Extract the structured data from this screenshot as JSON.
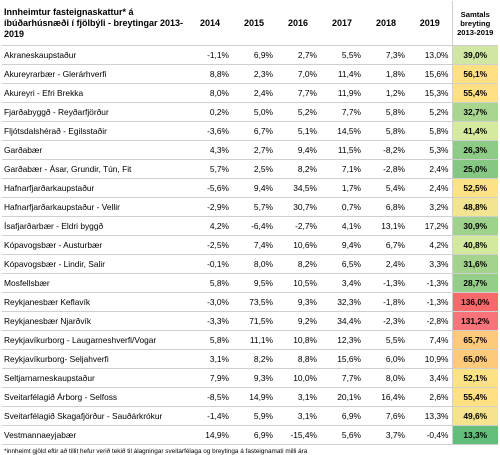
{
  "header": {
    "title": "Innheimtur fasteignaskattur* á íbúðarhúsnæði í fjölbýli - breytingar 2013- 2019",
    "years": [
      "2014",
      "2015",
      "2016",
      "2017",
      "2018",
      "2019"
    ],
    "sum_label": "Samtals breyting 2013-2019"
  },
  "rows": [
    {
      "name": "Akraneskaupstaður",
      "values": [
        "-1,1%",
        "6,9%",
        "2,7%",
        "5,5%",
        "7,3%",
        "13,0%"
      ],
      "total": "39,0%",
      "color": "#cfe7a2"
    },
    {
      "name": "Akureyrarbær - Glerárhverfi",
      "values": [
        "8,8%",
        "2,3%",
        "7,0%",
        "11,4%",
        "1,8%",
        "15,6%"
      ],
      "total": "56,1%",
      "color": "#ffe083"
    },
    {
      "name": "Akureyri - Efri Brekka",
      "values": [
        "8,0%",
        "2,4%",
        "7,7%",
        "11,9%",
        "1,2%",
        "15,3%"
      ],
      "total": "55,4%",
      "color": "#ffe083"
    },
    {
      "name": "Fjarðabyggð - Reyðarfjörður",
      "values": [
        "0,2%",
        "5,0%",
        "5,2%",
        "7,7%",
        "5,8%",
        "5,2%"
      ],
      "total": "32,7%",
      "color": "#a9d68f"
    },
    {
      "name": "Fljótsdalshérað - Egilsstaðir",
      "values": [
        "-3,6%",
        "6,7%",
        "5,1%",
        "14,5%",
        "5,8%",
        "5,8%"
      ],
      "total": "41,4%",
      "color": "#d6ea9f"
    },
    {
      "name": "Garðabær",
      "values": [
        "4,3%",
        "2,7%",
        "9,4%",
        "11,5%",
        "-8,2%",
        "5,3%"
      ],
      "total": "26,3%",
      "color": "#8ecb86"
    },
    {
      "name": "Garðabær - Ásar, Grundir, Tún, Fit",
      "values": [
        "5,7%",
        "2,5%",
        "8,2%",
        "7,1%",
        "-2,8%",
        "2,4%"
      ],
      "total": "25,0%",
      "color": "#86c883"
    },
    {
      "name": "Hafnarfjarðarkaupstaður",
      "values": [
        "-5,6%",
        "9,4%",
        "34,5%",
        "1,7%",
        "5,4%",
        "2,4%"
      ],
      "total": "52,5%",
      "color": "#fbe285"
    },
    {
      "name": "Hafnarfjarðarkaupstaður - Vellir",
      "values": [
        "-2,9%",
        "5,7%",
        "30,7%",
        "0,7%",
        "6,8%",
        "3,2%"
      ],
      "total": "48,8%",
      "color": "#f2e490"
    },
    {
      "name": "Ísafjarðarbær - Eldri byggð",
      "values": [
        "4,2%",
        "-6,4%",
        "-2,7%",
        "4,1%",
        "13,1%",
        "17,2%"
      ],
      "total": "30,9%",
      "color": "#9fd28b"
    },
    {
      "name": "Kópavogsbær - Austurbær",
      "values": [
        "-2,5%",
        "7,4%",
        "10,6%",
        "9,4%",
        "6,7%",
        "4,2%"
      ],
      "total": "40,8%",
      "color": "#d3e99d"
    },
    {
      "name": "Kópavogsbær - Lindir, Salir",
      "values": [
        "-0,1%",
        "8,0%",
        "8,2%",
        "6,5%",
        "2,4%",
        "3,3%"
      ],
      "total": "31,6%",
      "color": "#a3d38c"
    },
    {
      "name": "Mosfellsbær",
      "values": [
        "5,8%",
        "9,5%",
        "10,5%",
        "3,4%",
        "-1,3%",
        "-1,3%"
      ],
      "total": "28,7%",
      "color": "#95ce88"
    },
    {
      "name": "Reykjanesbær Keflavík",
      "values": [
        "-3,0%",
        "73,5%",
        "9,3%",
        "32,3%",
        "-1,8%",
        "-1,3%"
      ],
      "total": "136,0%",
      "color": "#f8696b"
    },
    {
      "name": "Reykjanesbær Njarðvík",
      "values": [
        "-3,3%",
        "71,5%",
        "9,2%",
        "34,4%",
        "-2,3%",
        "-2,8%"
      ],
      "total": "131,2%",
      "color": "#f8737a"
    },
    {
      "name": "Reykjavíkurborg - Laugarneshverfi/Vogar",
      "values": [
        "5,8%",
        "11,1%",
        "10,8%",
        "12,3%",
        "5,5%",
        "7,4%"
      ],
      "total": "65,7%",
      "color": "#fdc97b"
    },
    {
      "name": "Reykjavíkurborg- Seljahverfi",
      "values": [
        "3,1%",
        "8,2%",
        "8,8%",
        "15,6%",
        "6,0%",
        "10,9%"
      ],
      "total": "65,0%",
      "color": "#fdca7b"
    },
    {
      "name": "Seltjarnarneskaupstaður",
      "values": [
        "7,9%",
        "9,3%",
        "10,0%",
        "7,7%",
        "8,0%",
        "3,4%"
      ],
      "total": "52,1%",
      "color": "#fbe285"
    },
    {
      "name": "Sveitarfélagið Árborg - Selfoss",
      "values": [
        "-8,5%",
        "14,9%",
        "3,1%",
        "20,1%",
        "16,4%",
        "2,6%"
      ],
      "total": "55,4%",
      "color": "#ffe083"
    },
    {
      "name": "Sveitarfélagið Skagafjörður - Sauðárkrókur",
      "values": [
        "-1,4%",
        "5,9%",
        "3,1%",
        "6,9%",
        "7,6%",
        "13,3%"
      ],
      "total": "49,6%",
      "color": "#f5e38d"
    },
    {
      "name": "Vestmannaeyjabær",
      "values": [
        "14,9%",
        "6,9%",
        "-15,4%",
        "5,6%",
        "3,7%",
        "-0,4%"
      ],
      "total": "13,3%",
      "color": "#63be7b"
    }
  ],
  "footnote": "*innheimt gjöld eftir að tillit hefur verið tekið til álagningar sveitarfélaga og breytinga á fasteignamati milli ára"
}
